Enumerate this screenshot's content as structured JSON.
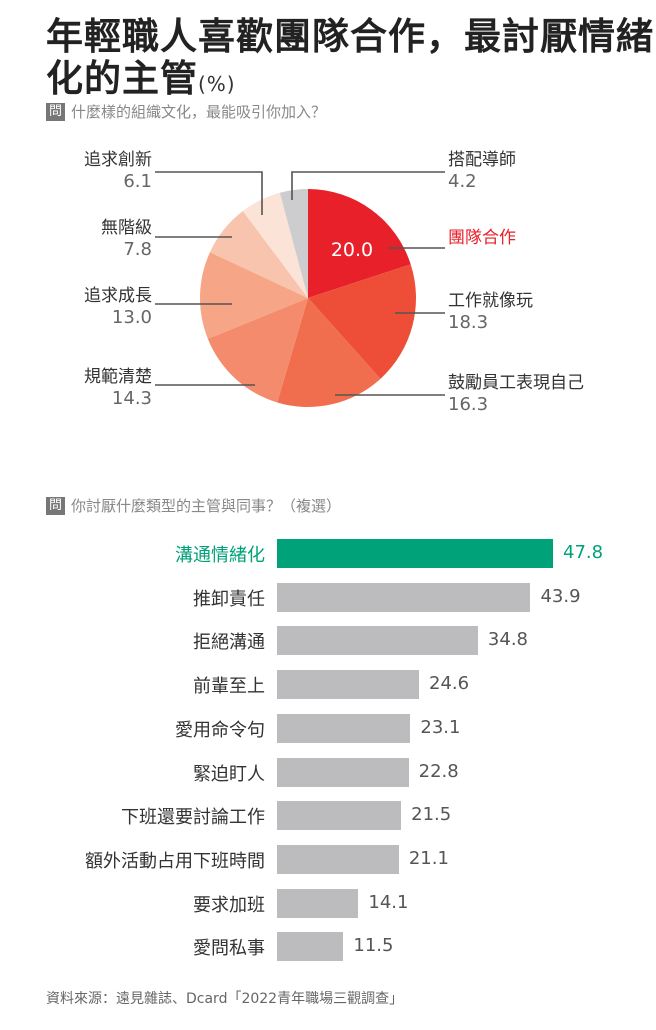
{
  "title_line1": "年輕職人喜歡團隊合作，最討厭情緒",
  "title_line2": "化的主管",
  "unit": "(%)",
  "question_badge": "問",
  "source": "資料來源：遠見雜誌、Dcard「2022青年職場三觀調查」",
  "colors": {
    "highlight_pie": "#e8202a",
    "highlight_bar": "#00a27a",
    "bar": "#bcbcbf"
  },
  "chart_data": [
    {
      "type": "pie",
      "title": "什麼樣的組織文化，最能吸引你加入？",
      "slices": [
        {
          "label": "團隊合作",
          "value": 20.0,
          "color": "#e8202a"
        },
        {
          "label": "工作就像玩",
          "value": 18.3,
          "color": "#ee4e37"
        },
        {
          "label": "鼓勵員工表現自己",
          "value": 16.3,
          "color": "#f06e4e"
        },
        {
          "label": "規範清楚",
          "value": 14.3,
          "color": "#f48b6c"
        },
        {
          "label": "追求成長",
          "value": 13.0,
          "color": "#f6a687"
        },
        {
          "label": "無階級",
          "value": 7.8,
          "color": "#f9c4ad"
        },
        {
          "label": "追求創新",
          "value": 6.1,
          "color": "#fce3d7"
        },
        {
          "label": "搭配導師",
          "value": 4.2,
          "color": "#cdcdcf"
        }
      ],
      "value_labels": [
        "20.0",
        "18.3",
        "16.3",
        "14.3",
        "13.0",
        "7.8",
        "6.1",
        "4.2"
      ]
    },
    {
      "type": "bar",
      "orientation": "horizontal",
      "title": "你討厭什麼類型的主管與同事？（複選）",
      "categories": [
        "溝通情緒化",
        "推卸責任",
        "拒絕溝通",
        "前輩至上",
        "愛用命令句",
        "緊迫盯人",
        "下班還要討論工作",
        "額外活動占用下班時間",
        "要求加班",
        "愛問私事"
      ],
      "values": [
        47.8,
        43.9,
        34.8,
        24.6,
        23.1,
        22.8,
        21.5,
        21.1,
        14.1,
        11.5
      ],
      "value_labels": [
        "47.8",
        "43.9",
        "34.8",
        "24.6",
        "23.1",
        "22.8",
        "21.5",
        "21.1",
        "14.1",
        "11.5"
      ],
      "highlight_index": 0
    }
  ]
}
